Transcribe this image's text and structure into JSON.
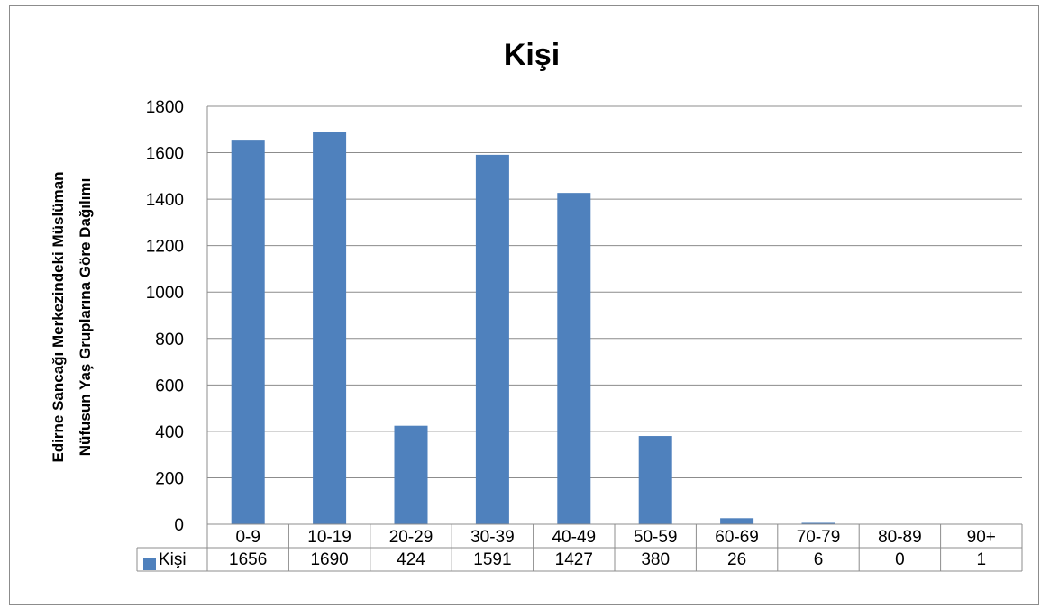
{
  "chart_data": {
    "type": "bar",
    "title": "Kişi",
    "ylabel_line1": "Edirne Sancağı Merkezindeki Müslüman",
    "ylabel_line2": "Nüfusun Yaş Gruplarına Göre Dağılımı",
    "xlabel": "",
    "categories": [
      "0-9",
      "10-19",
      "20-29",
      "30-39",
      "40-49",
      "50-59",
      "60-69",
      "70-79",
      "80-89",
      "90+"
    ],
    "series": [
      {
        "name": "Kişi",
        "values": [
          1656,
          1690,
          424,
          1591,
          1427,
          380,
          26,
          6,
          0,
          1
        ],
        "color": "#4f81bd"
      }
    ],
    "ylim": [
      0,
      1800
    ],
    "yticks": [
      0,
      200,
      400,
      600,
      800,
      1000,
      1200,
      1400,
      1600,
      1800
    ],
    "grid": true,
    "legend": "data-table-left",
    "data_table": true
  }
}
